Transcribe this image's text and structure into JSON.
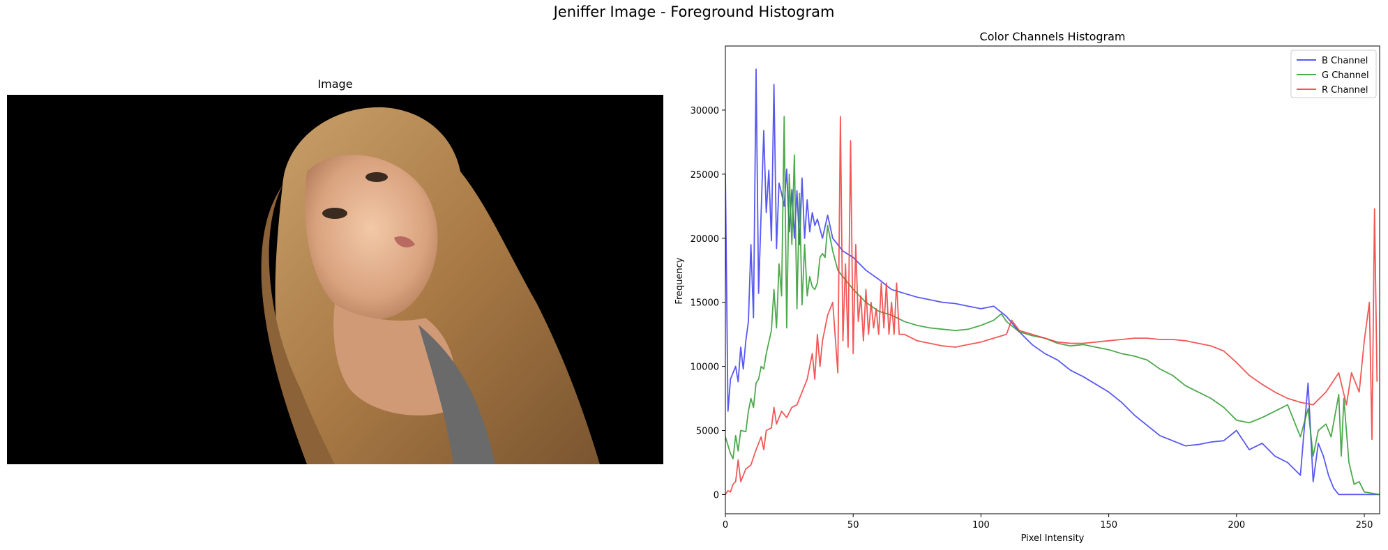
{
  "figure": {
    "suptitle": "Jeniffer Image - Foreground Histogram"
  },
  "image_panel": {
    "title": "Image",
    "content": "segmented foreground photo of a blonde woman on black background"
  },
  "colors": {
    "b": "#3b3bf0",
    "g": "#2e9a2e",
    "r": "#f03b3b"
  },
  "chart_data": {
    "type": "line",
    "title": "Color Channels Histogram",
    "xlabel": "Pixel Intensity",
    "ylabel": "Frequency",
    "xlim": [
      0,
      256
    ],
    "ylim": [
      -1500,
      35000
    ],
    "xticks": [
      0,
      50,
      100,
      150,
      200,
      250
    ],
    "yticks": [
      0,
      5000,
      10000,
      15000,
      20000,
      25000,
      30000
    ],
    "legend": "top-right",
    "series": [
      {
        "name": "B Channel",
        "color": "#3b3bf0",
        "points": [
          [
            0,
            25000
          ],
          [
            1,
            6500
          ],
          [
            2,
            9000
          ],
          [
            4,
            10000
          ],
          [
            5,
            8800
          ],
          [
            6,
            11500
          ],
          [
            7,
            9800
          ],
          [
            8,
            12000
          ],
          [
            9,
            13500
          ],
          [
            10,
            19500
          ],
          [
            11,
            13800
          ],
          [
            12,
            33200
          ],
          [
            13,
            15700
          ],
          [
            15,
            28400
          ],
          [
            16,
            22000
          ],
          [
            17,
            25300
          ],
          [
            18,
            19800
          ],
          [
            19,
            32000
          ],
          [
            20,
            19200
          ],
          [
            21,
            24300
          ],
          [
            22,
            23500
          ],
          [
            23,
            22500
          ],
          [
            24,
            25400
          ],
          [
            25,
            20500
          ],
          [
            26,
            23800
          ],
          [
            27,
            20000
          ],
          [
            28,
            23700
          ],
          [
            29,
            19500
          ],
          [
            30,
            24700
          ],
          [
            31,
            20000
          ],
          [
            32,
            23000
          ],
          [
            33,
            20500
          ],
          [
            34,
            22000
          ],
          [
            35,
            21000
          ],
          [
            36,
            21500
          ],
          [
            38,
            20000
          ],
          [
            40,
            21800
          ],
          [
            42,
            20000
          ],
          [
            44,
            19500
          ],
          [
            46,
            19000
          ],
          [
            50,
            18500
          ],
          [
            55,
            17500
          ],
          [
            60,
            16800
          ],
          [
            65,
            16000
          ],
          [
            70,
            15700
          ],
          [
            75,
            15400
          ],
          [
            80,
            15200
          ],
          [
            85,
            15000
          ],
          [
            90,
            14900
          ],
          [
            95,
            14700
          ],
          [
            100,
            14500
          ],
          [
            105,
            14700
          ],
          [
            110,
            13900
          ],
          [
            115,
            12700
          ],
          [
            120,
            11700
          ],
          [
            125,
            11000
          ],
          [
            130,
            10500
          ],
          [
            135,
            9700
          ],
          [
            140,
            9200
          ],
          [
            145,
            8600
          ],
          [
            150,
            8000
          ],
          [
            155,
            7200
          ],
          [
            160,
            6200
          ],
          [
            165,
            5400
          ],
          [
            170,
            4600
          ],
          [
            175,
            4200
          ],
          [
            180,
            3800
          ],
          [
            185,
            3900
          ],
          [
            190,
            4100
          ],
          [
            195,
            4200
          ],
          [
            200,
            5000
          ],
          [
            205,
            3500
          ],
          [
            210,
            4000
          ],
          [
            215,
            3000
          ],
          [
            220,
            2500
          ],
          [
            225,
            1500
          ],
          [
            228,
            8700
          ],
          [
            230,
            1000
          ],
          [
            232,
            4000
          ],
          [
            234,
            3000
          ],
          [
            236,
            1500
          ],
          [
            238,
            500
          ],
          [
            240,
            0
          ],
          [
            256,
            0
          ]
        ]
      },
      {
        "name": "G Channel",
        "color": "#2e9a2e",
        "points": [
          [
            0,
            4500
          ],
          [
            2,
            3200
          ],
          [
            3,
            2800
          ],
          [
            4,
            4600
          ],
          [
            5,
            3400
          ],
          [
            6,
            5000
          ],
          [
            8,
            4900
          ],
          [
            9,
            6500
          ],
          [
            10,
            7500
          ],
          [
            11,
            6800
          ],
          [
            12,
            8700
          ],
          [
            13,
            9000
          ],
          [
            14,
            10000
          ],
          [
            15,
            9800
          ],
          [
            16,
            11000
          ],
          [
            18,
            12800
          ],
          [
            19,
            16000
          ],
          [
            20,
            13000
          ],
          [
            21,
            18000
          ],
          [
            22,
            15500
          ],
          [
            23,
            29500
          ],
          [
            24,
            13000
          ],
          [
            25,
            25000
          ],
          [
            26,
            19500
          ],
          [
            27,
            26500
          ],
          [
            28,
            14500
          ],
          [
            29,
            23500
          ],
          [
            30,
            14800
          ],
          [
            31,
            19500
          ],
          [
            32,
            15500
          ],
          [
            33,
            17000
          ],
          [
            34,
            16200
          ],
          [
            35,
            16000
          ],
          [
            36,
            16500
          ],
          [
            37,
            18500
          ],
          [
            38,
            18800
          ],
          [
            39,
            18500
          ],
          [
            40,
            21000
          ],
          [
            42,
            19000
          ],
          [
            44,
            17500
          ],
          [
            46,
            17000
          ],
          [
            48,
            16500
          ],
          [
            50,
            16000
          ],
          [
            55,
            15000
          ],
          [
            60,
            14300
          ],
          [
            65,
            14000
          ],
          [
            70,
            13500
          ],
          [
            75,
            13200
          ],
          [
            80,
            13000
          ],
          [
            85,
            12900
          ],
          [
            90,
            12800
          ],
          [
            95,
            12900
          ],
          [
            100,
            13200
          ],
          [
            105,
            13600
          ],
          [
            108,
            14100
          ],
          [
            110,
            13500
          ],
          [
            115,
            12700
          ],
          [
            120,
            12400
          ],
          [
            125,
            12200
          ],
          [
            130,
            11800
          ],
          [
            135,
            11600
          ],
          [
            140,
            11700
          ],
          [
            145,
            11500
          ],
          [
            150,
            11300
          ],
          [
            155,
            11000
          ],
          [
            160,
            10800
          ],
          [
            165,
            10500
          ],
          [
            170,
            9800
          ],
          [
            175,
            9300
          ],
          [
            180,
            8500
          ],
          [
            185,
            8000
          ],
          [
            190,
            7500
          ],
          [
            195,
            6800
          ],
          [
            200,
            5800
          ],
          [
            205,
            5600
          ],
          [
            210,
            6000
          ],
          [
            215,
            6500
          ],
          [
            220,
            7000
          ],
          [
            225,
            4500
          ],
          [
            228,
            6700
          ],
          [
            230,
            3000
          ],
          [
            232,
            5000
          ],
          [
            235,
            5500
          ],
          [
            237,
            4500
          ],
          [
            240,
            7800
          ],
          [
            241,
            3000
          ],
          [
            242,
            7500
          ],
          [
            244,
            2500
          ],
          [
            246,
            800
          ],
          [
            248,
            1000
          ],
          [
            250,
            200
          ],
          [
            256,
            0
          ]
        ]
      },
      {
        "name": "R Channel",
        "color": "#f03b3b",
        "points": [
          [
            0,
            0
          ],
          [
            1,
            300
          ],
          [
            2,
            200
          ],
          [
            3,
            800
          ],
          [
            4,
            1000
          ],
          [
            5,
            2700
          ],
          [
            6,
            1000
          ],
          [
            8,
            2000
          ],
          [
            10,
            2300
          ],
          [
            12,
            3500
          ],
          [
            14,
            4500
          ],
          [
            15,
            3500
          ],
          [
            16,
            5000
          ],
          [
            18,
            5200
          ],
          [
            19,
            6800
          ],
          [
            20,
            5500
          ],
          [
            22,
            6500
          ],
          [
            24,
            6000
          ],
          [
            26,
            6800
          ],
          [
            28,
            7000
          ],
          [
            30,
            8000
          ],
          [
            32,
            9000
          ],
          [
            34,
            11000
          ],
          [
            35,
            9000
          ],
          [
            36,
            12500
          ],
          [
            37,
            10000
          ],
          [
            38,
            12000
          ],
          [
            40,
            14000
          ],
          [
            42,
            15000
          ],
          [
            44,
            9500
          ],
          [
            45,
            29500
          ],
          [
            46,
            12000
          ],
          [
            47,
            18000
          ],
          [
            48,
            11500
          ],
          [
            49,
            27600
          ],
          [
            50,
            11000
          ],
          [
            51,
            19500
          ],
          [
            52,
            13500
          ],
          [
            53,
            15500
          ],
          [
            54,
            12000
          ],
          [
            55,
            16000
          ],
          [
            56,
            12500
          ],
          [
            57,
            15000
          ],
          [
            58,
            13000
          ],
          [
            59,
            14500
          ],
          [
            60,
            12500
          ],
          [
            61,
            16500
          ],
          [
            62,
            13000
          ],
          [
            63,
            16500
          ],
          [
            64,
            12500
          ],
          [
            65,
            15000
          ],
          [
            66,
            12500
          ],
          [
            67,
            16500
          ],
          [
            68,
            12500
          ],
          [
            70,
            12500
          ],
          [
            75,
            12000
          ],
          [
            80,
            11800
          ],
          [
            85,
            11600
          ],
          [
            90,
            11500
          ],
          [
            95,
            11700
          ],
          [
            100,
            11900
          ],
          [
            105,
            12200
          ],
          [
            110,
            12500
          ],
          [
            112,
            13600
          ],
          [
            115,
            12800
          ],
          [
            120,
            12500
          ],
          [
            125,
            12200
          ],
          [
            130,
            11900
          ],
          [
            135,
            11800
          ],
          [
            140,
            11800
          ],
          [
            145,
            11900
          ],
          [
            150,
            12000
          ],
          [
            155,
            12100
          ],
          [
            160,
            12200
          ],
          [
            165,
            12200
          ],
          [
            170,
            12100
          ],
          [
            175,
            12100
          ],
          [
            180,
            12000
          ],
          [
            185,
            11800
          ],
          [
            190,
            11600
          ],
          [
            195,
            11200
          ],
          [
            200,
            10300
          ],
          [
            205,
            9300
          ],
          [
            210,
            8600
          ],
          [
            215,
            8000
          ],
          [
            220,
            7500
          ],
          [
            225,
            7200
          ],
          [
            230,
            7000
          ],
          [
            235,
            8000
          ],
          [
            240,
            9500
          ],
          [
            243,
            7000
          ],
          [
            245,
            9500
          ],
          [
            248,
            8000
          ],
          [
            250,
            12000
          ],
          [
            252,
            15000
          ],
          [
            253,
            4300
          ],
          [
            254,
            22300
          ],
          [
            255,
            8800
          ]
        ]
      }
    ]
  }
}
